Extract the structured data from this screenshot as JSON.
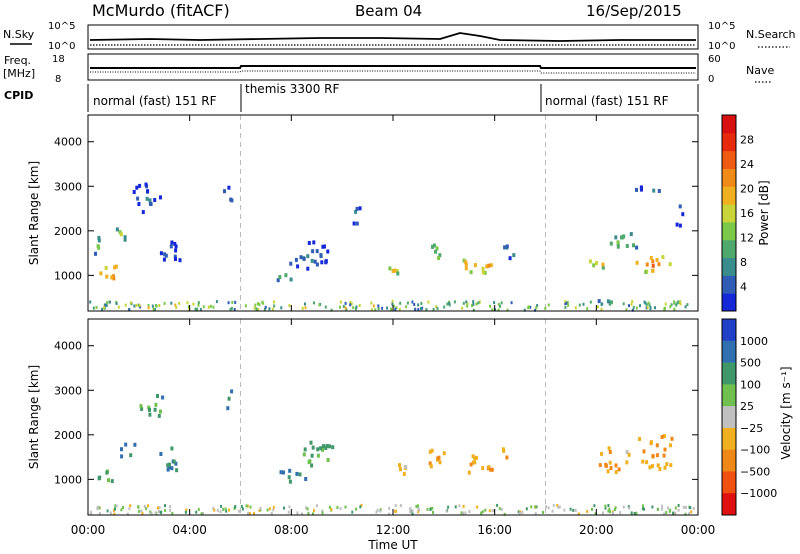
{
  "header": {
    "station": "McMurdo (fitACF)",
    "beam": "Beam 04",
    "date": "16/Sep/2015"
  },
  "top_panels": {
    "nsky_label": "N.Sky",
    "nsky_ticks": [
      "10^5",
      "10^0"
    ],
    "nsearch_label": "N.Search",
    "nsearch_ticks": [
      "10^5",
      "10^0"
    ],
    "freq_label_1": "Freq.",
    "freq_label_2": "[MHz]",
    "freq_ticks": [
      "18",
      "8"
    ],
    "nave_label": "Nave",
    "nave_ticks": [
      "60",
      "0"
    ],
    "cpid_label": "CPID",
    "cpid_segments": [
      {
        "label": "normal (fast) 151 RF",
        "start_hour": 0,
        "end_hour": 6
      },
      {
        "label": "themis 3300 RF",
        "start_hour": 6,
        "end_hour": 18
      },
      {
        "label": "normal (fast) 151 RF",
        "start_hour": 18,
        "end_hour": 24
      }
    ]
  },
  "chart_data": [
    {
      "type": "heatmap",
      "name": "power",
      "ylabel": "Slant Range [km]",
      "ylim": [
        200,
        4600
      ],
      "yticks": [
        1000,
        2000,
        3000,
        4000
      ],
      "xlim": [
        0,
        24
      ],
      "colorbar": {
        "label": "Power [dB]",
        "range": [
          0,
          32
        ],
        "ticks": [
          4,
          8,
          12,
          16,
          20,
          24,
          28
        ],
        "colors": [
          "#1428d8",
          "#2f5cb4",
          "#3b8c8c",
          "#4fa86c",
          "#7cc94a",
          "#c8d438",
          "#f0b020",
          "#f08a18",
          "#f05a12",
          "#e82a0c",
          "#d81010"
        ]
      },
      "blobs": [
        {
          "t": 0.8,
          "r": 1100,
          "dt": 0.9,
          "dr": 380,
          "v": 24
        },
        {
          "t": 0.4,
          "r": 1700,
          "dt": 0.5,
          "dr": 500,
          "v": 12
        },
        {
          "t": 1.3,
          "r": 2000,
          "dt": 0.5,
          "dr": 400,
          "v": 14
        },
        {
          "t": 2.2,
          "r": 2800,
          "dt": 1.2,
          "dr": 700,
          "v": 8
        },
        {
          "t": 3.2,
          "r": 1500,
          "dt": 1.0,
          "dr": 600,
          "v": 7
        },
        {
          "t": 5.5,
          "r": 2800,
          "dt": 0.5,
          "dr": 500,
          "v": 10
        },
        {
          "t": 7.7,
          "r": 1000,
          "dt": 1.0,
          "dr": 250,
          "v": 11
        },
        {
          "t": 8.6,
          "r": 1500,
          "dt": 1.8,
          "dr": 700,
          "v": 8
        },
        {
          "t": 10.5,
          "r": 2400,
          "dt": 0.5,
          "dr": 500,
          "v": 8
        },
        {
          "t": 12.0,
          "r": 1150,
          "dt": 0.6,
          "dr": 300,
          "v": 17
        },
        {
          "t": 13.5,
          "r": 1500,
          "dt": 0.8,
          "dr": 450,
          "v": 16
        },
        {
          "t": 15.3,
          "r": 1300,
          "dt": 1.2,
          "dr": 450,
          "v": 24
        },
        {
          "t": 16.6,
          "r": 1600,
          "dt": 0.6,
          "dr": 350,
          "v": 12
        },
        {
          "t": 20.0,
          "r": 1350,
          "dt": 0.7,
          "dr": 420,
          "v": 20
        },
        {
          "t": 22.2,
          "r": 1300,
          "dt": 1.4,
          "dr": 420,
          "v": 24
        },
        {
          "t": 21.0,
          "r": 1800,
          "dt": 1.6,
          "dr": 400,
          "v": 14
        },
        {
          "t": 23.2,
          "r": 2400,
          "dt": 0.5,
          "dr": 500,
          "v": 10
        },
        {
          "t": 22.0,
          "r": 2950,
          "dt": 1.5,
          "dr": 200,
          "v": 8
        },
        {
          "t": 20.3,
          "r": 420,
          "dt": 0.7,
          "dr": 150,
          "v": 14
        }
      ]
    },
    {
      "type": "heatmap",
      "name": "velocity",
      "xlabel": "Time UT",
      "ylabel": "Slant Range [km]",
      "ylim": [
        200,
        4600
      ],
      "yticks": [
        1000,
        2000,
        3000,
        4000
      ],
      "xlim": [
        0,
        24
      ],
      "xticks": [
        "00:00",
        "04:00",
        "08:00",
        "12:00",
        "16:00",
        "20:00",
        "00:00"
      ],
      "colorbar": {
        "label": "Velocity [m s⁻¹]",
        "tick_labels": [
          "1000",
          "500",
          "100",
          "25",
          "−25",
          "−100",
          "−500",
          "−1000"
        ],
        "colors": [
          "#2040c8",
          "#3070b0",
          "#40986a",
          "#70c050",
          "#c0c0c0",
          "#f0b020",
          "#f08818",
          "#f05010",
          "#e01010"
        ]
      },
      "blobs": [
        {
          "t": 0.6,
          "r": 1100,
          "dt": 0.7,
          "dr": 380,
          "v": 3
        },
        {
          "t": 1.5,
          "r": 1700,
          "dt": 0.7,
          "dr": 450,
          "v": 2
        },
        {
          "t": 2.4,
          "r": 2700,
          "dt": 1.2,
          "dr": 650,
          "v": 3
        },
        {
          "t": 3.2,
          "r": 1500,
          "dt": 1.0,
          "dr": 600,
          "v": 2
        },
        {
          "t": 5.6,
          "r": 2800,
          "dt": 0.5,
          "dr": 450,
          "v": 2
        },
        {
          "t": 8.0,
          "r": 1100,
          "dt": 1.4,
          "dr": 350,
          "v": 2
        },
        {
          "t": 9.0,
          "r": 1600,
          "dt": 1.4,
          "dr": 600,
          "v": 3
        },
        {
          "t": 12.3,
          "r": 1250,
          "dt": 0.7,
          "dr": 350,
          "v": 5
        },
        {
          "t": 13.6,
          "r": 1500,
          "dt": 0.9,
          "dr": 450,
          "v": 6
        },
        {
          "t": 15.3,
          "r": 1350,
          "dt": 1.3,
          "dr": 470,
          "v": 6
        },
        {
          "t": 16.5,
          "r": 1600,
          "dt": 0.6,
          "dr": 350,
          "v": 6
        },
        {
          "t": 20.6,
          "r": 1500,
          "dt": 1.4,
          "dr": 600,
          "v": 6
        },
        {
          "t": 22.4,
          "r": 1600,
          "dt": 1.6,
          "dr": 650,
          "v": 6
        },
        {
          "t": 22.3,
          "r": 1950,
          "dt": 1.4,
          "dr": 200,
          "v": 6
        },
        {
          "t": 20.3,
          "r": 400,
          "dt": 0.6,
          "dr": 150,
          "v": 3
        }
      ]
    }
  ]
}
